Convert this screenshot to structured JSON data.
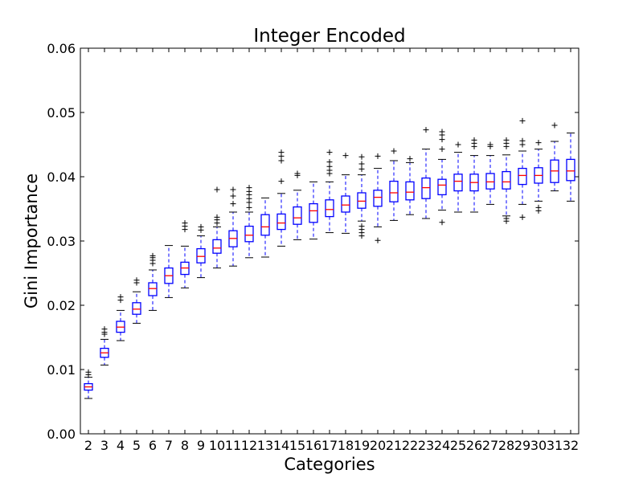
{
  "chart_data": {
    "type": "boxplot",
    "title": "Integer Encoded",
    "xlabel": "Categories",
    "ylabel": "Gini Importance",
    "ylim": [
      0,
      0.06
    ],
    "yticks": [
      "0.00",
      "0.01",
      "0.02",
      "0.03",
      "0.04",
      "0.05",
      "0.06"
    ],
    "categories": [
      "2",
      "3",
      "4",
      "5",
      "6",
      "7",
      "8",
      "9",
      "10",
      "11",
      "12",
      "13",
      "14",
      "15",
      "16",
      "17",
      "18",
      "19",
      "20",
      "21",
      "22",
      "23",
      "24",
      "25",
      "26",
      "27",
      "28",
      "29",
      "30",
      "31",
      "32"
    ],
    "series": [
      {
        "whisker_low": 0.0055,
        "q1": 0.0068,
        "median": 0.0073,
        "q3": 0.0078,
        "whisker_high": 0.0088,
        "outliers": [
          0.0092,
          0.0096
        ]
      },
      {
        "whisker_low": 0.0107,
        "q1": 0.0119,
        "median": 0.0126,
        "q3": 0.0133,
        "whisker_high": 0.0147,
        "outliers": [
          0.0155,
          0.0158,
          0.0163
        ]
      },
      {
        "whisker_low": 0.0145,
        "q1": 0.0158,
        "median": 0.0166,
        "q3": 0.0175,
        "whisker_high": 0.0192,
        "outliers": [
          0.0208,
          0.0213
        ]
      },
      {
        "whisker_low": 0.0172,
        "q1": 0.0186,
        "median": 0.0194,
        "q3": 0.0204,
        "whisker_high": 0.0221,
        "outliers": [
          0.0235,
          0.0239
        ]
      },
      {
        "whisker_low": 0.0192,
        "q1": 0.0215,
        "median": 0.0226,
        "q3": 0.0235,
        "whisker_high": 0.0255,
        "outliers": [
          0.0265,
          0.027,
          0.0274,
          0.0277
        ]
      },
      {
        "whisker_low": 0.0212,
        "q1": 0.0234,
        "median": 0.0246,
        "q3": 0.0258,
        "whisker_high": 0.0293,
        "outliers": []
      },
      {
        "whisker_low": 0.0227,
        "q1": 0.0248,
        "median": 0.0258,
        "q3": 0.0267,
        "whisker_high": 0.0292,
        "outliers": [
          0.0318,
          0.0323,
          0.0328
        ]
      },
      {
        "whisker_low": 0.0243,
        "q1": 0.0266,
        "median": 0.0276,
        "q3": 0.0288,
        "whisker_high": 0.0308,
        "outliers": [
          0.0317,
          0.0322
        ]
      },
      {
        "whisker_low": 0.0258,
        "q1": 0.0281,
        "median": 0.0289,
        "q3": 0.0302,
        "whisker_high": 0.0322,
        "outliers": [
          0.0328,
          0.0333,
          0.0337,
          0.038
        ]
      },
      {
        "whisker_low": 0.0261,
        "q1": 0.0291,
        "median": 0.0304,
        "q3": 0.0316,
        "whisker_high": 0.0345,
        "outliers": [
          0.0358,
          0.037,
          0.038
        ]
      },
      {
        "whisker_low": 0.0274,
        "q1": 0.0299,
        "median": 0.0309,
        "q3": 0.0323,
        "whisker_high": 0.0345,
        "outliers": [
          0.0352,
          0.036,
          0.0366,
          0.0372,
          0.0377,
          0.0383
        ]
      },
      {
        "whisker_low": 0.0275,
        "q1": 0.0309,
        "median": 0.0322,
        "q3": 0.0341,
        "whisker_high": 0.0367,
        "outliers": []
      },
      {
        "whisker_low": 0.0292,
        "q1": 0.0318,
        "median": 0.0328,
        "q3": 0.0342,
        "whisker_high": 0.0374,
        "outliers": [
          0.0393,
          0.0425,
          0.0432,
          0.0438
        ]
      },
      {
        "whisker_low": 0.0302,
        "q1": 0.0326,
        "median": 0.0336,
        "q3": 0.0353,
        "whisker_high": 0.0379,
        "outliers": [
          0.0402,
          0.0405
        ]
      },
      {
        "whisker_low": 0.0303,
        "q1": 0.0329,
        "median": 0.0347,
        "q3": 0.0358,
        "whisker_high": 0.0392,
        "outliers": []
      },
      {
        "whisker_low": 0.0313,
        "q1": 0.0338,
        "median": 0.0349,
        "q3": 0.0364,
        "whisker_high": 0.0392,
        "outliers": [
          0.0405,
          0.041,
          0.0416,
          0.0423,
          0.0438
        ]
      },
      {
        "whisker_low": 0.0312,
        "q1": 0.0345,
        "median": 0.0356,
        "q3": 0.037,
        "whisker_high": 0.0403,
        "outliers": [
          0.0433
        ]
      },
      {
        "whisker_low": 0.0331,
        "q1": 0.0351,
        "median": 0.0362,
        "q3": 0.0375,
        "whisker_high": 0.0403,
        "outliers": [
          0.0308,
          0.0313,
          0.0318,
          0.0323,
          0.0412,
          0.042,
          0.0431
        ]
      },
      {
        "whisker_low": 0.0322,
        "q1": 0.0354,
        "median": 0.0368,
        "q3": 0.0379,
        "whisker_high": 0.0413,
        "outliers": [
          0.0301,
          0.0432
        ]
      },
      {
        "whisker_low": 0.0332,
        "q1": 0.0361,
        "median": 0.0375,
        "q3": 0.0393,
        "whisker_high": 0.0425,
        "outliers": [
          0.044
        ]
      },
      {
        "whisker_low": 0.0341,
        "q1": 0.0364,
        "median": 0.0376,
        "q3": 0.0392,
        "whisker_high": 0.0422,
        "outliers": [
          0.0428
        ]
      },
      {
        "whisker_low": 0.0335,
        "q1": 0.0366,
        "median": 0.0383,
        "q3": 0.0398,
        "whisker_high": 0.0443,
        "outliers": [
          0.0473
        ]
      },
      {
        "whisker_low": 0.0348,
        "q1": 0.0372,
        "median": 0.0387,
        "q3": 0.0396,
        "whisker_high": 0.0427,
        "outliers": [
          0.0329,
          0.0443,
          0.0458,
          0.0465,
          0.047
        ]
      },
      {
        "whisker_low": 0.0345,
        "q1": 0.0378,
        "median": 0.0393,
        "q3": 0.0404,
        "whisker_high": 0.0438,
        "outliers": [
          0.045
        ]
      },
      {
        "whisker_low": 0.0345,
        "q1": 0.0378,
        "median": 0.0391,
        "q3": 0.0404,
        "whisker_high": 0.0433,
        "outliers": [
          0.0447,
          0.0452,
          0.0457
        ]
      },
      {
        "whisker_low": 0.0357,
        "q1": 0.0381,
        "median": 0.0392,
        "q3": 0.0405,
        "whisker_high": 0.0433,
        "outliers": [
          0.0447,
          0.045
        ]
      },
      {
        "whisker_low": 0.0339,
        "q1": 0.0381,
        "median": 0.0392,
        "q3": 0.0408,
        "whisker_high": 0.0434,
        "outliers": [
          0.0331,
          0.0335,
          0.0447,
          0.0452,
          0.0457
        ]
      },
      {
        "whisker_low": 0.0357,
        "q1": 0.0388,
        "median": 0.0402,
        "q3": 0.0413,
        "whisker_high": 0.044,
        "outliers": [
          0.0337,
          0.045,
          0.0456,
          0.0487
        ]
      },
      {
        "whisker_low": 0.0362,
        "q1": 0.039,
        "median": 0.0402,
        "q3": 0.0414,
        "whisker_high": 0.0443,
        "outliers": [
          0.0347,
          0.0352,
          0.0453
        ]
      },
      {
        "whisker_low": 0.0378,
        "q1": 0.0391,
        "median": 0.0409,
        "q3": 0.0426,
        "whisker_high": 0.0455,
        "outliers": [
          0.048
        ]
      },
      {
        "whisker_low": 0.0362,
        "q1": 0.0394,
        "median": 0.0409,
        "q3": 0.0427,
        "whisker_high": 0.0468,
        "outliers": []
      }
    ]
  }
}
